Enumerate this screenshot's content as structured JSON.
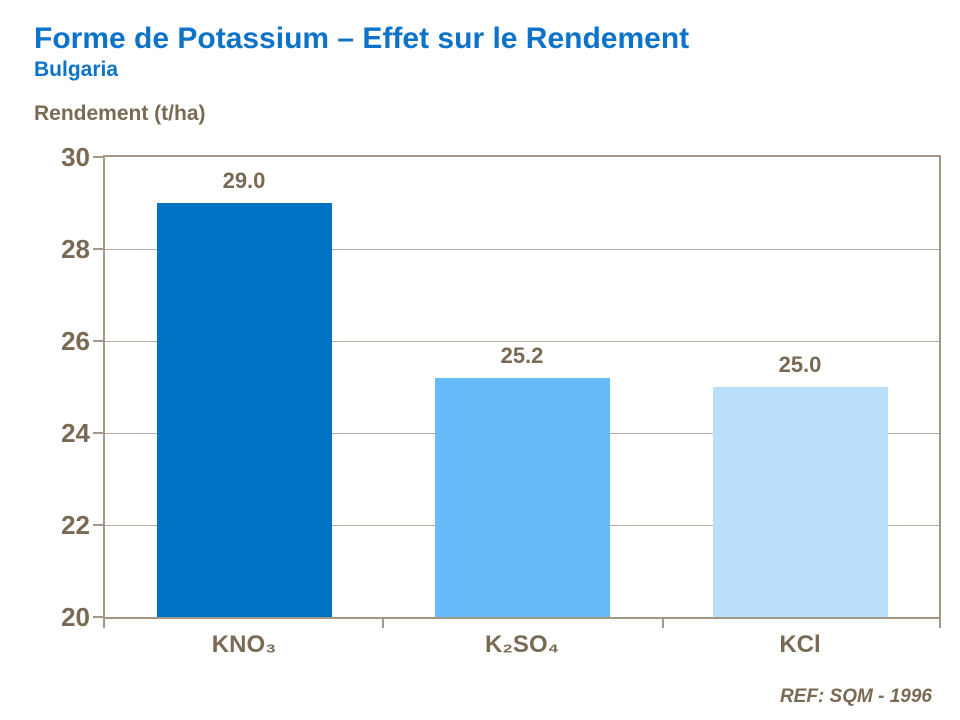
{
  "header": {
    "title": "Forme de Potassium – Effet sur le Rendement",
    "subtitle": "Bulgaria"
  },
  "footer": {
    "reference": "REF: SQM - 1996"
  },
  "colors": {
    "title_blue": "#0c73c8",
    "text_brown": "#7a6a54",
    "gridline": "#b7ab9e",
    "frame": "#a39786",
    "bars": [
      "#0072c3",
      "#66baf9",
      "#b9dffb"
    ]
  },
  "chart_data": {
    "type": "bar",
    "title": "Forme de Potassium – Effet sur le Rendement",
    "subtitle": "Bulgaria",
    "ylabel": "Rendement (t/ha)",
    "xlabel": "",
    "categories": [
      "KNO₃",
      "K₂SO₄",
      "KCl"
    ],
    "values": [
      29.0,
      25.2,
      25.0
    ],
    "value_labels": [
      "29.0",
      "25.2",
      "25.0"
    ],
    "ylim": [
      20,
      30
    ],
    "yticks": [
      20,
      22,
      24,
      26,
      28,
      30
    ],
    "grid": true,
    "legend": false
  }
}
